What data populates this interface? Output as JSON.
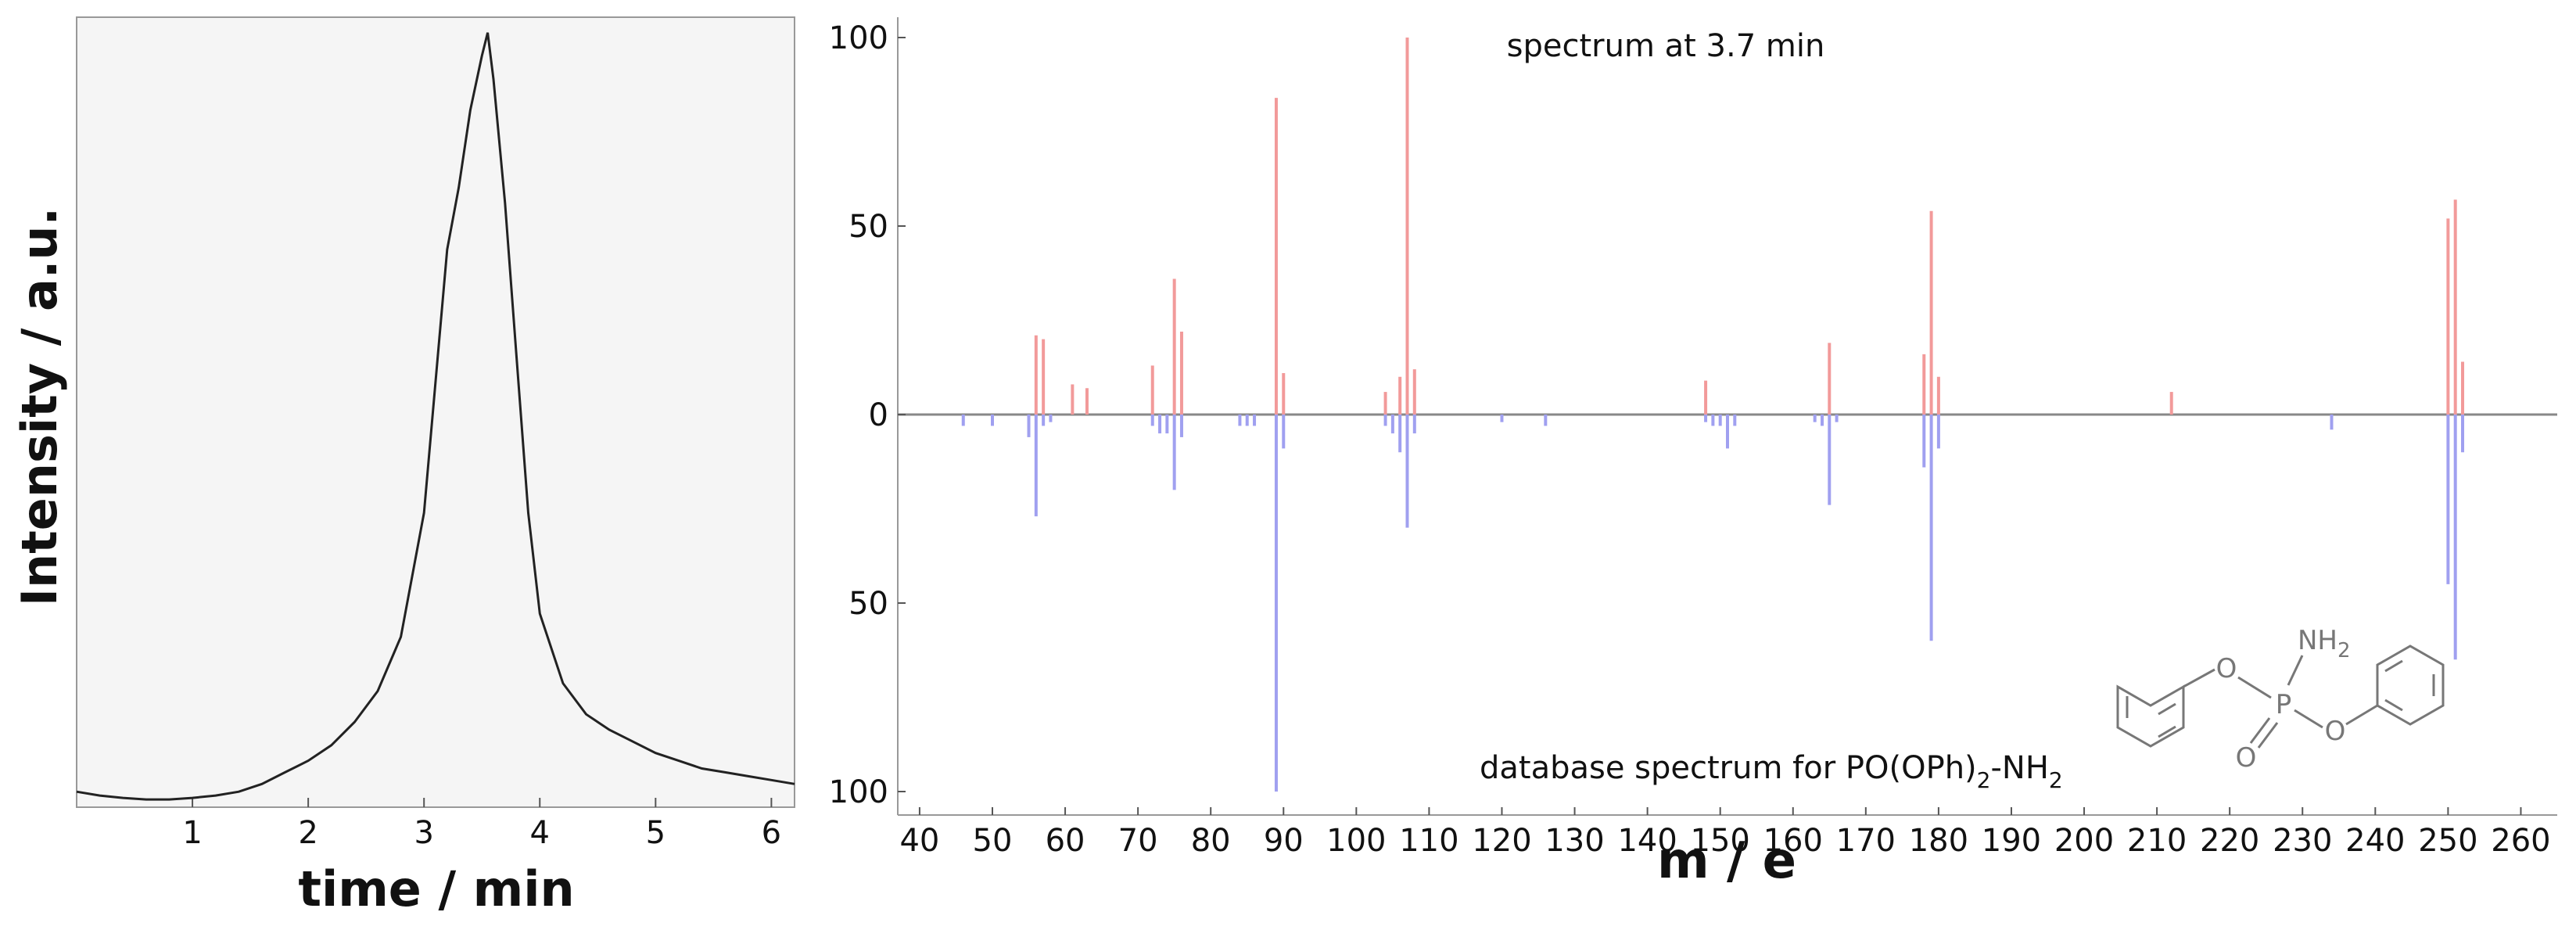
{
  "chart_data": [
    {
      "type": "line",
      "xlabel": "time / min",
      "ylabel": "Intensity / a.u.",
      "xlim": [
        0,
        6.2
      ],
      "ylim": [
        0,
        1.02
      ],
      "xticks": [
        1,
        2,
        3,
        4,
        5,
        6
      ],
      "grid": false,
      "series": [
        {
          "x": [
            0.0,
            0.2,
            0.4,
            0.6,
            0.8,
            1.0,
            1.2,
            1.4,
            1.6,
            1.8,
            2.0,
            2.2,
            2.4,
            2.6,
            2.8,
            3.0,
            3.1,
            3.2,
            3.3,
            3.4,
            3.5,
            3.55,
            3.6,
            3.7,
            3.8,
            3.9,
            4.0,
            4.2,
            4.4,
            4.6,
            4.8,
            5.0,
            5.2,
            5.4,
            5.6,
            5.8,
            6.0,
            6.2
          ],
          "y": [
            0.02,
            0.015,
            0.012,
            0.01,
            0.01,
            0.012,
            0.015,
            0.02,
            0.03,
            0.045,
            0.06,
            0.08,
            0.11,
            0.15,
            0.22,
            0.38,
            0.55,
            0.72,
            0.8,
            0.9,
            0.97,
            1.0,
            0.94,
            0.78,
            0.58,
            0.38,
            0.25,
            0.16,
            0.12,
            0.1,
            0.085,
            0.07,
            0.06,
            0.05,
            0.045,
            0.04,
            0.035,
            0.03
          ]
        }
      ]
    },
    {
      "type": "bar",
      "title": "spectrum at 3.7 min",
      "xlabel": "m / e",
      "ylabel": "",
      "xlim": [
        37,
        265
      ],
      "ylim": [
        -105,
        105
      ],
      "xticks": [
        40,
        50,
        60,
        70,
        80,
        90,
        100,
        110,
        120,
        130,
        140,
        150,
        160,
        170,
        180,
        190,
        200,
        210,
        220,
        230,
        240,
        250,
        260
      ],
      "yticks": [
        {
          "value": 100,
          "label": "100"
        },
        {
          "value": 50,
          "label": "50"
        },
        {
          "value": 0,
          "label": "0"
        },
        {
          "value": -50,
          "label": "50"
        },
        {
          "value": -100,
          "label": "100"
        }
      ],
      "annotation": {
        "prefix": "database spectrum for PO(OPh)",
        "sub1": "2",
        "mid": "-NH",
        "sub2": "2"
      },
      "series": [
        {
          "color": "#f29a9a",
          "x": [
            56,
            57,
            61,
            63,
            72,
            75,
            76,
            89,
            90,
            104,
            106,
            107,
            108,
            148,
            165,
            178,
            179,
            180,
            212,
            250,
            251,
            252
          ],
          "values": [
            21,
            20,
            8,
            7,
            13,
            36,
            22,
            84,
            11,
            6,
            10,
            100,
            12,
            9,
            19,
            16,
            54,
            10,
            6,
            52,
            57,
            14
          ]
        },
        {
          "color": "#a0a0f0",
          "x": [
            46,
            50,
            55,
            56,
            57,
            58,
            72,
            73,
            74,
            75,
            76,
            84,
            85,
            86,
            89,
            90,
            104,
            105,
            106,
            107,
            108,
            120,
            126,
            148,
            149,
            150,
            151,
            152,
            163,
            164,
            165,
            166,
            178,
            179,
            180,
            234,
            250,
            251,
            252
          ],
          "values": [
            -3,
            -3,
            -6,
            -27,
            -3,
            -2,
            -3,
            -5,
            -5,
            -20,
            -6,
            -3,
            -3,
            -3,
            -100,
            -9,
            -3,
            -5,
            -10,
            -30,
            -5,
            -2,
            -3,
            -2,
            -3,
            -3,
            -9,
            -3,
            -2,
            -3,
            -24,
            -2,
            -14,
            -60,
            -9,
            -4,
            -45,
            -65,
            -10
          ]
        }
      ]
    }
  ],
  "molecule": {
    "nh2": "NH",
    "nh2_sub": "2",
    "p": "P",
    "o_left": "O",
    "o_right": "O",
    "o_double": "O"
  }
}
